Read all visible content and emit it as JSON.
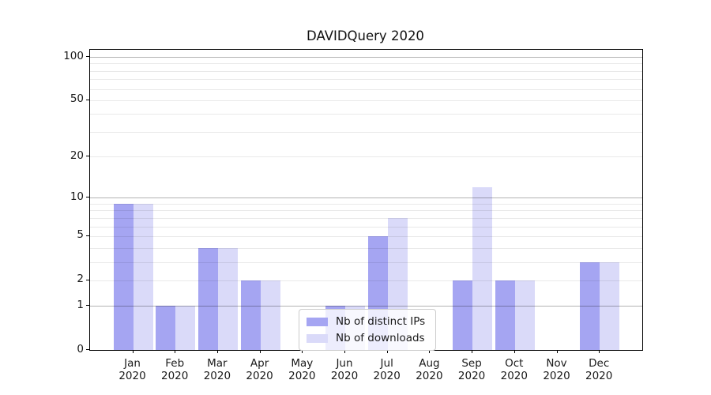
{
  "title": "DAVIDQuery 2020",
  "chart_data": {
    "type": "bar",
    "title": "DAVIDQuery 2020",
    "categories": [
      {
        "month": "Jan",
        "year": "2020"
      },
      {
        "month": "Feb",
        "year": "2020"
      },
      {
        "month": "Mar",
        "year": "2020"
      },
      {
        "month": "Apr",
        "year": "2020"
      },
      {
        "month": "May",
        "year": "2020"
      },
      {
        "month": "Jun",
        "year": "2020"
      },
      {
        "month": "Jul",
        "year": "2020"
      },
      {
        "month": "Aug",
        "year": "2020"
      },
      {
        "month": "Sep",
        "year": "2020"
      },
      {
        "month": "Oct",
        "year": "2020"
      },
      {
        "month": "Nov",
        "year": "2020"
      },
      {
        "month": "Dec",
        "year": "2020"
      }
    ],
    "series": [
      {
        "name": "Nb of distinct IPs",
        "color": "#a5a5f2",
        "values": [
          9,
          1,
          4,
          2,
          0,
          1,
          5,
          0,
          2,
          2,
          0,
          3
        ]
      },
      {
        "name": "Nb of downloads",
        "color": "#dadaf9",
        "values": [
          9,
          1,
          4,
          2,
          0,
          1,
          7,
          0,
          12,
          2,
          0,
          3
        ]
      }
    ],
    "xlabel": "",
    "ylabel": "",
    "y_scale": "log10(1+v)",
    "ylim": [
      0,
      112
    ],
    "y_ticks": [
      0,
      1,
      2,
      5,
      10,
      20,
      50,
      100
    ],
    "grid": {
      "major_lines": [
        1,
        10,
        100
      ],
      "minor_lines": [
        2,
        3,
        4,
        5,
        6,
        7,
        8,
        9,
        20,
        30,
        40,
        50,
        60,
        70,
        80,
        90
      ]
    },
    "legend_position": "lower center"
  },
  "colors": {
    "bar_dark": "#a5a5f2",
    "bar_light": "#dadaf9",
    "grid_minor": "#e8e8e8",
    "grid_major": "#b3b3b3",
    "spine": "#000000",
    "text": "#1a1a1a"
  }
}
